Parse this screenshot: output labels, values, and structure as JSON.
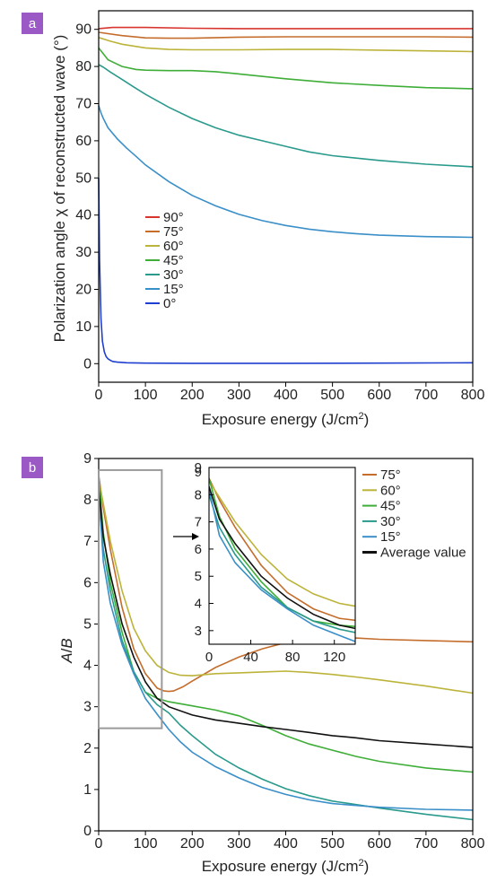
{
  "colors": {
    "90": "#d8352e",
    "75": "#c46d2c",
    "60": "#bcb43a",
    "45": "#3fae38",
    "30": "#2a9a8c",
    "15": "#3a8fc8",
    "0": "#1f3fd0",
    "avg": "#111111",
    "panel_tag": "#9b59c6",
    "roi_box": "#9a9a9a"
  },
  "chart_data": [
    {
      "panel": "a",
      "type": "line",
      "xlabel_main": "Exposure energy (J/cm",
      "xlabel_sup": "2",
      "xlabel_end": ")",
      "ylabel": "Polarization angle χ of reconstructed wave (°)",
      "xlim": [
        0,
        800
      ],
      "ylim": [
        -5,
        95
      ],
      "xticks": [
        "0",
        "100",
        "200",
        "300",
        "400",
        "500",
        "600",
        "700",
        "800"
      ],
      "yticks": [
        "0",
        "10",
        "20",
        "30",
        "40",
        "50",
        "60",
        "70",
        "80",
        "90"
      ],
      "legend": [
        "90°",
        "75°",
        "60°",
        "45°",
        "30°",
        "15°",
        "0°"
      ],
      "series": [
        {
          "name": "90°",
          "key": "90",
          "x": [
            0,
            30,
            100,
            200,
            300,
            400,
            500,
            600,
            700,
            800
          ],
          "y": [
            90.2,
            90.5,
            90.5,
            90.3,
            90.2,
            90.2,
            90.2,
            90.2,
            90.2,
            90.2
          ]
        },
        {
          "name": "75°",
          "key": "75",
          "x": [
            0,
            50,
            100,
            150,
            200,
            300,
            400,
            500,
            600,
            700,
            800
          ],
          "y": [
            89.2,
            88.3,
            87.7,
            87.6,
            87.6,
            87.9,
            88.0,
            88.0,
            88.0,
            88.0,
            87.9
          ]
        },
        {
          "name": "60°",
          "key": "60",
          "x": [
            0,
            25,
            50,
            100,
            150,
            200,
            300,
            400,
            500,
            600,
            700,
            800
          ],
          "y": [
            87.8,
            86.8,
            86.0,
            85.0,
            84.6,
            84.5,
            84.5,
            84.6,
            84.6,
            84.4,
            84.2,
            84.0
          ]
        },
        {
          "name": "45°",
          "key": "45",
          "x": [
            0,
            20,
            50,
            80,
            100,
            150,
            200,
            250,
            300,
            400,
            500,
            600,
            700,
            800
          ],
          "y": [
            85.0,
            81.8,
            80.0,
            79.2,
            79.0,
            78.9,
            78.9,
            78.6,
            78.0,
            76.7,
            75.6,
            74.9,
            74.3,
            74.0
          ]
        },
        {
          "name": "30°",
          "key": "30",
          "x": [
            0,
            10,
            25,
            50,
            75,
            100,
            150,
            200,
            250,
            300,
            350,
            400,
            450,
            500,
            600,
            700,
            800
          ],
          "y": [
            80.5,
            79.8,
            78.5,
            76.5,
            74.5,
            72.5,
            69.0,
            66.0,
            63.5,
            61.5,
            60.0,
            58.5,
            57.0,
            56.0,
            54.7,
            53.7,
            53.0
          ]
        },
        {
          "name": "15°",
          "key": "15",
          "x": [
            0,
            5,
            10,
            20,
            40,
            60,
            80,
            100,
            150,
            200,
            250,
            300,
            350,
            400,
            450,
            500,
            550,
            600,
            700,
            800
          ],
          "y": [
            69.5,
            67.5,
            66.0,
            63.5,
            60.5,
            58.0,
            55.8,
            53.5,
            49.0,
            45.3,
            42.5,
            40.2,
            38.5,
            37.2,
            36.2,
            35.5,
            35.0,
            34.6,
            34.2,
            34.0
          ]
        },
        {
          "name": "0°",
          "key": "0",
          "x": [
            0,
            2,
            5,
            8,
            12,
            16,
            20,
            25,
            30,
            40,
            60,
            100,
            200,
            400,
            600,
            800
          ],
          "y": [
            50,
            28,
            12,
            6,
            3.2,
            1.9,
            1.3,
            0.9,
            0.6,
            0.4,
            0.25,
            0.15,
            0.1,
            0.1,
            0.15,
            0.25
          ]
        }
      ]
    },
    {
      "panel": "b",
      "type": "line",
      "xlabel_main": "Exposure energy (J/cm",
      "xlabel_sup": "2",
      "xlabel_end": ")",
      "ylabel_a": "A",
      "ylabel_sep": "/",
      "ylabel_b": "B",
      "xlim": [
        0,
        800
      ],
      "ylim": [
        0,
        9
      ],
      "xticks": [
        "0",
        "100",
        "200",
        "300",
        "400",
        "500",
        "600",
        "700",
        "800"
      ],
      "yticks": [
        "0",
        "1",
        "2",
        "3",
        "4",
        "5",
        "6",
        "7",
        "8",
        "9"
      ],
      "roi": {
        "x": [
          0,
          135
        ],
        "y": [
          2.48,
          8.72
        ]
      },
      "inset": {
        "xlim": [
          0,
          140
        ],
        "ylim": [
          2.5,
          9
        ],
        "xticks": [
          "0",
          "40",
          "80",
          "120"
        ],
        "yticks": [
          "3",
          "4",
          "5",
          "6",
          "7",
          "8",
          "9"
        ]
      },
      "legend": [
        "75°",
        "60°",
        "45°",
        "30°",
        "15°",
        "Average value"
      ],
      "series": [
        {
          "name": "75°",
          "key": "75",
          "x": [
            0,
            10,
            25,
            50,
            75,
            100,
            125,
            140,
            150,
            160,
            180,
            200,
            250,
            300,
            350,
            400,
            450,
            500,
            550,
            600,
            700,
            800
          ],
          "y": [
            8.6,
            7.8,
            6.8,
            5.4,
            4.4,
            3.8,
            3.45,
            3.38,
            3.37,
            3.38,
            3.48,
            3.62,
            3.95,
            4.2,
            4.4,
            4.55,
            4.6,
            4.62,
            4.66,
            4.63,
            4.6,
            4.57
          ]
        },
        {
          "name": "60°",
          "key": "60",
          "x": [
            0,
            10,
            25,
            50,
            75,
            100,
            125,
            150,
            175,
            200,
            250,
            300,
            350,
            400,
            450,
            500,
            550,
            600,
            700,
            800
          ],
          "y": [
            8.5,
            7.9,
            7.0,
            5.8,
            4.9,
            4.35,
            4.0,
            3.83,
            3.76,
            3.75,
            3.8,
            3.82,
            3.84,
            3.86,
            3.83,
            3.78,
            3.72,
            3.65,
            3.5,
            3.33
          ]
        },
        {
          "name": "45°",
          "key": "45",
          "x": [
            0,
            10,
            25,
            50,
            75,
            100,
            125,
            150,
            200,
            250,
            300,
            350,
            400,
            450,
            500,
            550,
            600,
            700,
            800
          ],
          "y": [
            8.6,
            7.2,
            6.0,
            4.8,
            3.85,
            3.35,
            3.2,
            3.12,
            3.02,
            2.92,
            2.78,
            2.55,
            2.3,
            2.1,
            1.95,
            1.8,
            1.68,
            1.52,
            1.42
          ]
        },
        {
          "name": "30°",
          "key": "30",
          "x": [
            0,
            10,
            25,
            50,
            75,
            100,
            125,
            150,
            175,
            200,
            250,
            300,
            350,
            400,
            450,
            500,
            600,
            700,
            800
          ],
          "y": [
            8.0,
            6.8,
            5.8,
            4.6,
            3.85,
            3.35,
            3.05,
            2.85,
            2.55,
            2.3,
            1.85,
            1.52,
            1.25,
            1.02,
            0.85,
            0.72,
            0.55,
            0.4,
            0.27
          ]
        },
        {
          "name": "15°",
          "key": "15",
          "x": [
            0,
            10,
            25,
            50,
            75,
            100,
            125,
            150,
            175,
            200,
            250,
            300,
            350,
            400,
            450,
            500,
            600,
            700,
            800
          ],
          "y": [
            8.2,
            6.5,
            5.5,
            4.5,
            3.8,
            3.2,
            2.82,
            2.45,
            2.15,
            1.9,
            1.55,
            1.28,
            1.05,
            0.88,
            0.75,
            0.66,
            0.57,
            0.52,
            0.5
          ]
        },
        {
          "name": "Average value",
          "key": "avg",
          "x": [
            0,
            10,
            25,
            50,
            75,
            100,
            125,
            150,
            200,
            250,
            300,
            350,
            400,
            450,
            500,
            550,
            600,
            700,
            800
          ],
          "y": [
            8.3,
            7.1,
            6.2,
            5.0,
            4.2,
            3.6,
            3.2,
            3.0,
            2.8,
            2.68,
            2.6,
            2.52,
            2.45,
            2.38,
            2.3,
            2.25,
            2.18,
            2.1,
            2.02
          ]
        }
      ]
    }
  ]
}
